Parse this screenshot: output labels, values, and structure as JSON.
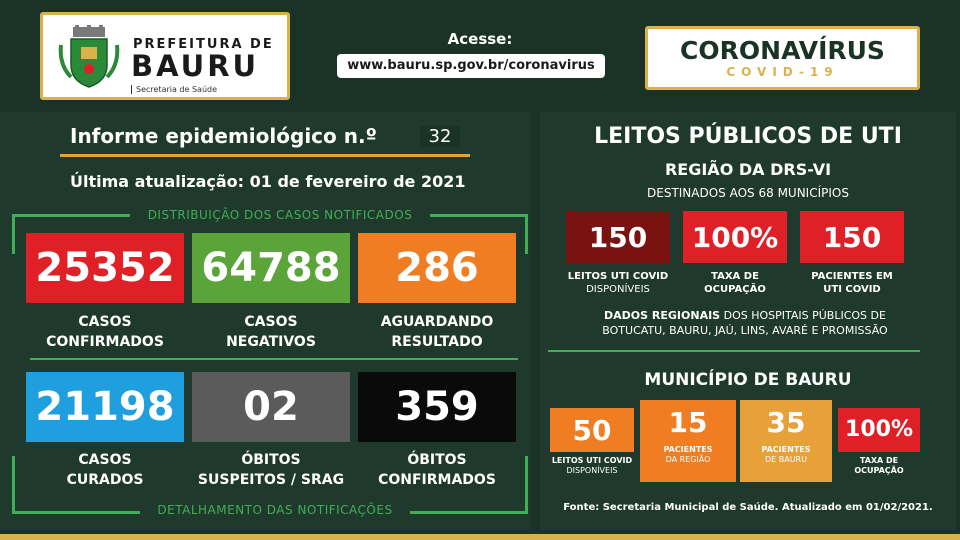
{
  "header": {
    "prefeitura_small": "PREFEITURA DE",
    "prefeitura_big": "BAURU",
    "secretaria": "Secretaria de Saúde",
    "acesse_label": "Acesse:",
    "acesse_url": "www.bauru.sp.gov.br/coronavirus",
    "corona_title": "CORONAVÍRUS",
    "corona_sub": "COVID-19"
  },
  "informe": {
    "title": "Informe epidemiológico n.º",
    "number": "32",
    "atualizacao": "Última atualização: 01 de fevereiro de 2021",
    "distribuicao_label": "DISTRIBUIÇÃO DOS CASOS NOTIFICADOS",
    "detalhamento_label": "DETALHAMENTO DAS NOTIFICAÇÕES"
  },
  "cases": [
    {
      "value": "25352",
      "label1": "CASOS",
      "label2": "CONFIRMADOS",
      "color": "#e02027"
    },
    {
      "value": "64788",
      "label1": "CASOS",
      "label2": "NEGATIVOS",
      "color": "#5aa43a"
    },
    {
      "value": "286",
      "label1": "AGUARDANDO",
      "label2": "RESULTADO",
      "color": "#f07d22"
    },
    {
      "value": "21198",
      "label1": "CASOS",
      "label2": "CURADOS",
      "color": "#1f9fde"
    },
    {
      "value": "02",
      "label1": "ÓBITOS",
      "label2": "SUSPEITOS / SRAG",
      "color": "#5b5b5b"
    },
    {
      "value": "359",
      "label1": "ÓBITOS",
      "label2": "CONFIRMADOS",
      "color": "#0a0a0a"
    }
  ],
  "leitos": {
    "title": "LEITOS PÚBLICOS DE UTI",
    "regiao": "REGIÃO DA DRS-VI",
    "destinados": "DESTINADOS AOS 68 MUNICÍPIOS",
    "boxes": [
      {
        "value": "150",
        "label1": "LEITOS UTI COVID",
        "label2": "DISPONÍVEIS",
        "color": "#7a1212"
      },
      {
        "value": "100%",
        "label1": "TAXA DE",
        "label2": "OCUPAÇÃO",
        "color": "#e02027"
      },
      {
        "value": "150",
        "label1": "PACIENTES EM",
        "label2": "UTI COVID",
        "color": "#e02027"
      }
    ],
    "dados_bold": "DADOS REGIONAIS",
    "dados_rest1": " DOS HOSPITAIS PÚBLICOS DE",
    "dados_rest2": "BOTUCATU, BAURU, JAÚ, LINS, AVARÉ E PROMISSÃO"
  },
  "municipio": {
    "title": "MUNICÍPIO DE BAURU",
    "boxes": [
      {
        "value": "50",
        "label1": "LEITOS UTI COVID",
        "label2": "DISPONÍVEIS",
        "color": "#f07d22"
      },
      {
        "value": "15",
        "label1": "PACIENTES",
        "label2": "DA REGIÃO",
        "color": "#f07d22"
      },
      {
        "value": "35",
        "label1": "PACIENTES",
        "label2": "DE BAURU",
        "color": "#e8a038"
      },
      {
        "value": "100%",
        "label1": "TAXA DE",
        "label2": "OCUPAÇÃO",
        "color": "#e02027"
      }
    ],
    "fonte": "Fonte: Secretaria Municipal de Saúde. Atualizado em  01/02/2021."
  },
  "colors": {
    "background": "#1b3326",
    "accent_green": "#3fae57",
    "accent_gold": "#d9b24a"
  }
}
